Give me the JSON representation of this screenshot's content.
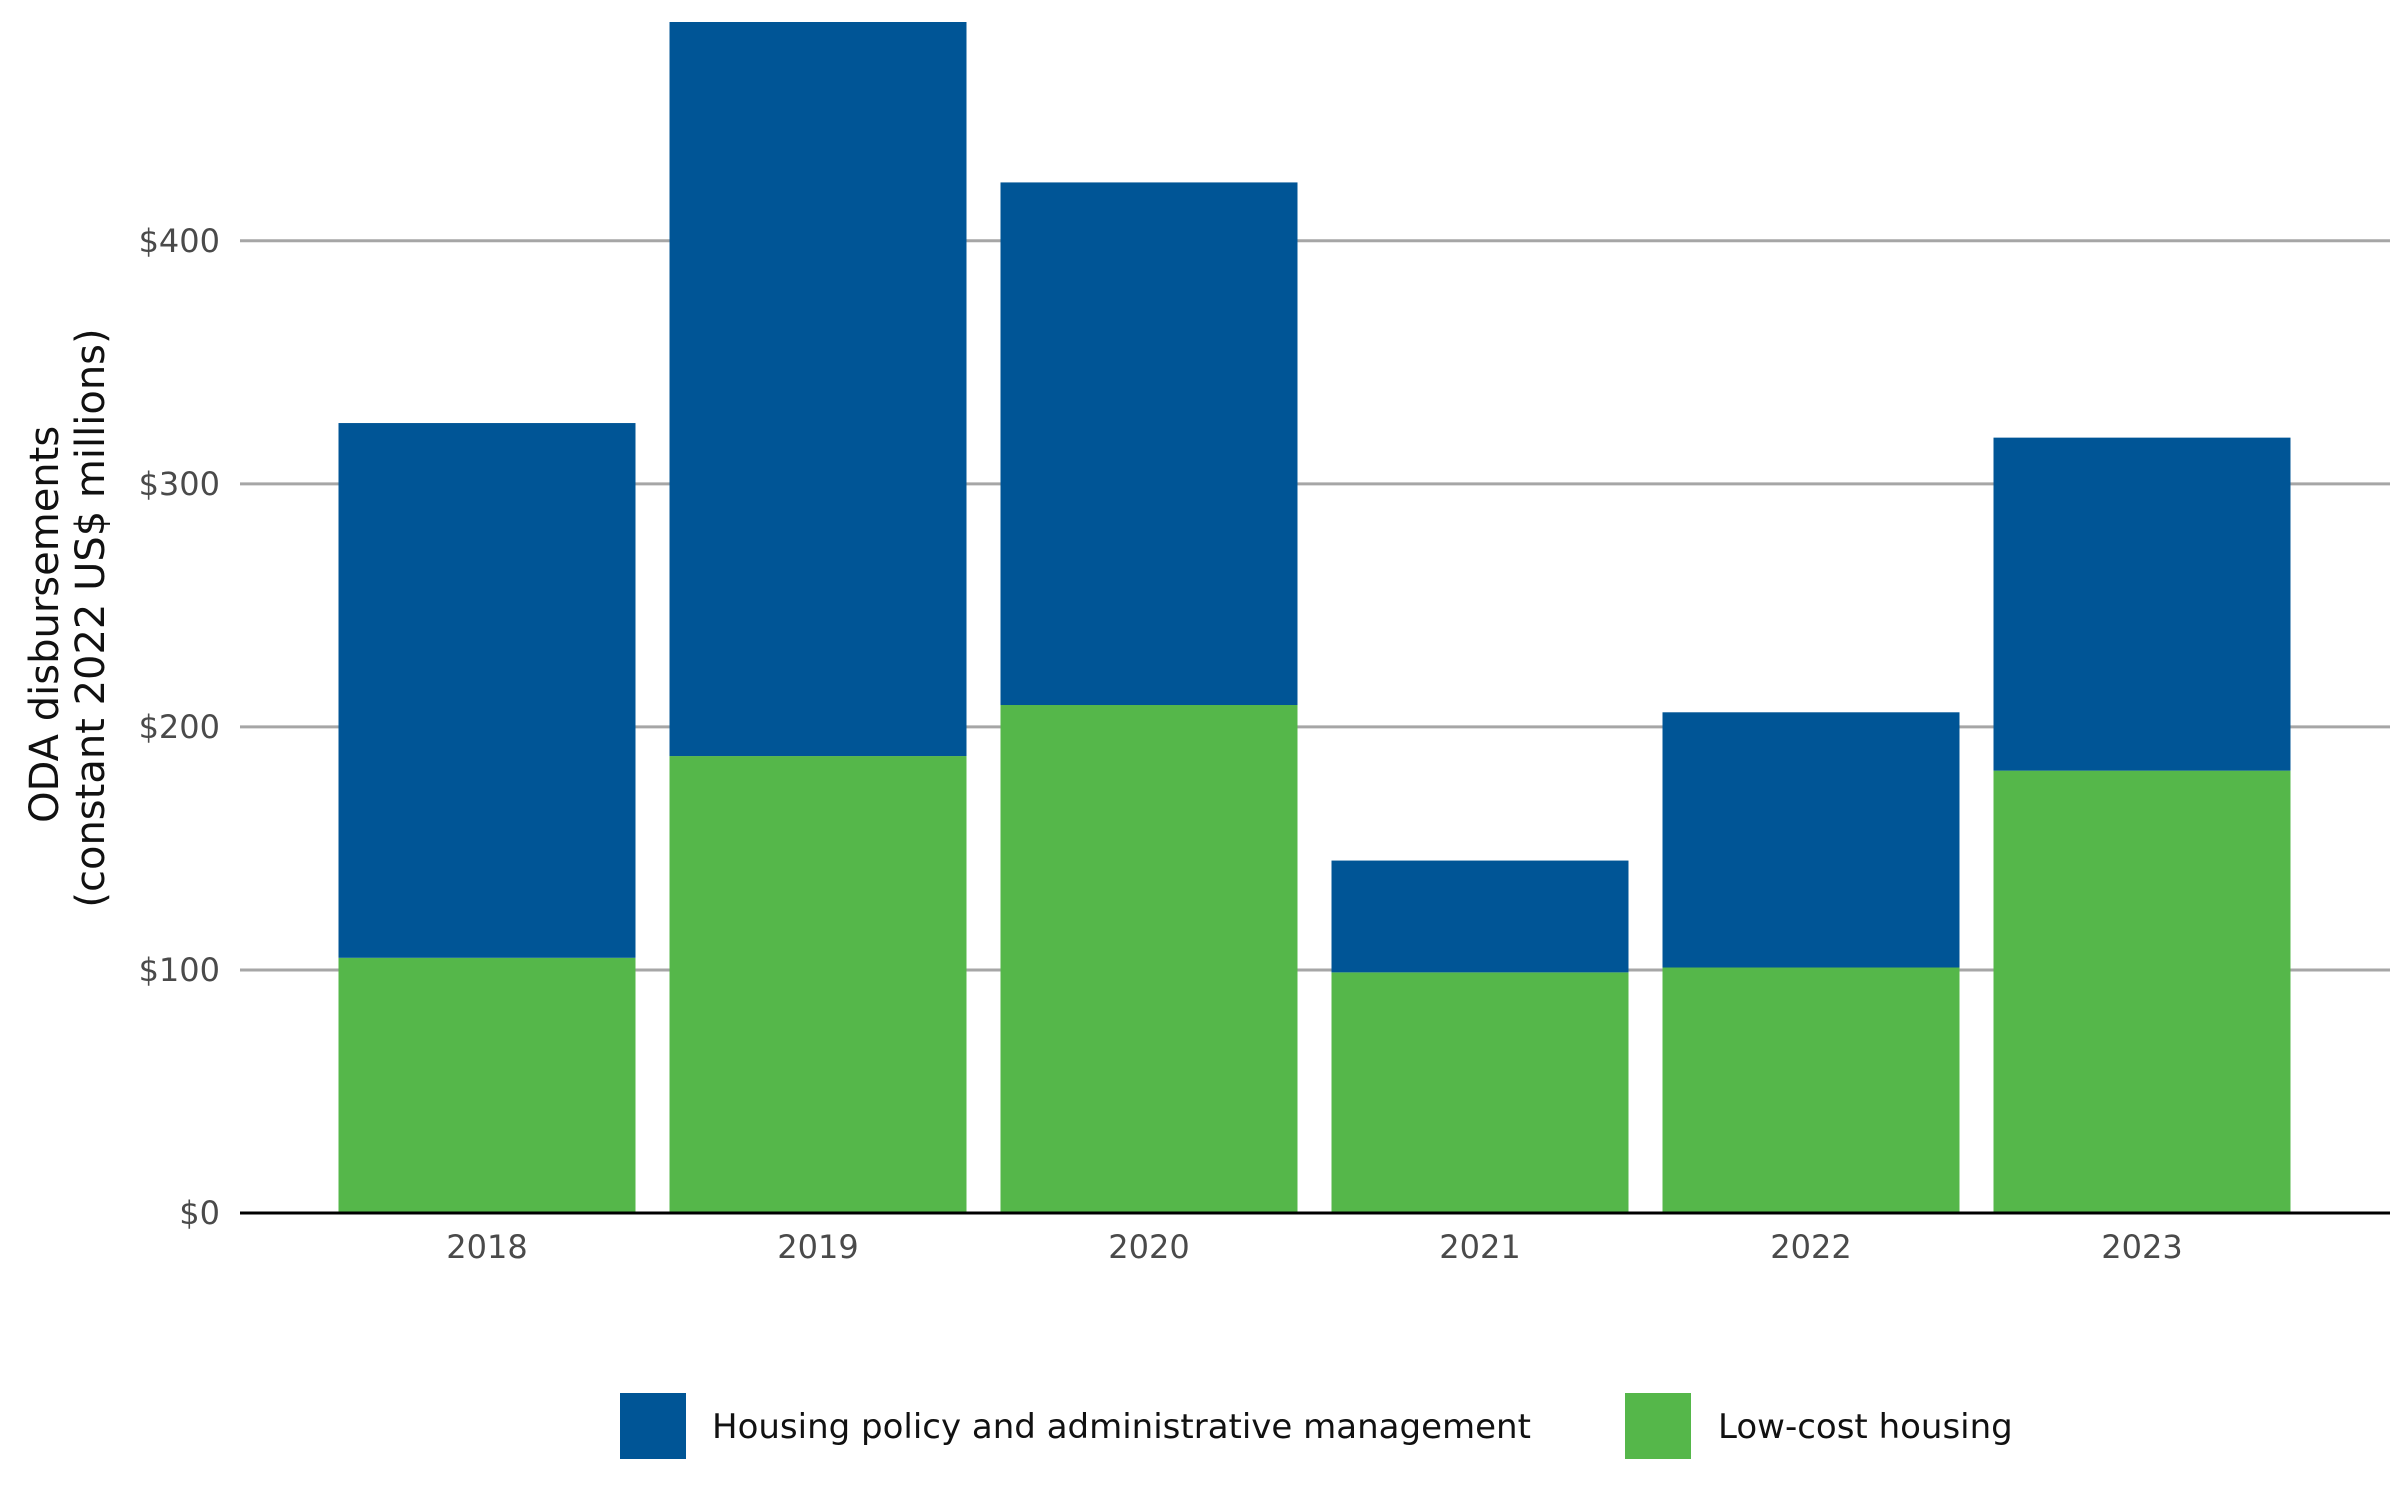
{
  "chart_data": {
    "type": "bar",
    "stacked": true,
    "title": "",
    "xlabel": "",
    "ylabel_line1": "ODA disbursements",
    "ylabel_line2": "(constant 2022 US$ millions)",
    "categories": [
      "2018",
      "2019",
      "2020",
      "2021",
      "2022",
      "2023"
    ],
    "ylim": [
      0,
      490
    ],
    "yticks": [
      0,
      100,
      200,
      300,
      400
    ],
    "ytick_labels": [
      "$0",
      "$100",
      "$200",
      "$300",
      "$400"
    ],
    "grid": true,
    "legend_position": "bottom",
    "series": [
      {
        "name": "Low-cost housing",
        "color": "#55b74a",
        "values": [
          105,
          188,
          209,
          99,
          101,
          182
        ]
      },
      {
        "name": "Housing policy and administrative management",
        "color": "#005596",
        "values": [
          220,
          302,
          215,
          46,
          105,
          137
        ]
      }
    ],
    "legend_order": [
      "Housing policy and administrative management",
      "Low-cost housing"
    ]
  }
}
